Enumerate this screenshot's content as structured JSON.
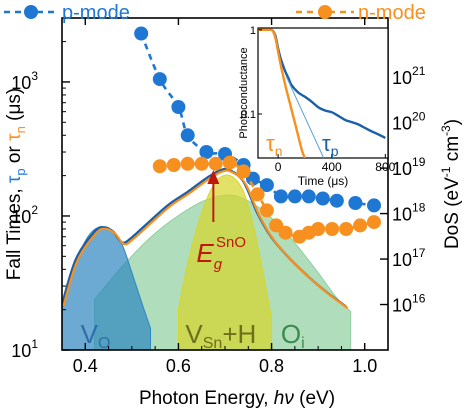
{
  "chart_data": [
    {
      "type": "scatter",
      "xlabel": "Photon Energy, hν (eV)",
      "xlabel_main": "Photon Energy,",
      "xlabel_var": "hν",
      "xlabel_unit": "(eV)",
      "ylabel_left": "Fall Times, τp or τn (μs)",
      "ylabel_left_parts": [
        "Fall Times, ",
        "τ",
        "p",
        " or ",
        "τ",
        "n",
        " (μs)"
      ],
      "ylabel_right": "DoS (eV⁻¹ cm⁻³)",
      "ylabel_right_parts": [
        "DoS (eV",
        "-1",
        " cm",
        "-3",
        ")"
      ],
      "xlim": [
        0.35,
        1.05
      ],
      "ylim_left": [
        10,
        3000
      ],
      "yscale_left": "log",
      "ylim_right": [
        1000000000000000.0,
        2e+22
      ],
      "yscale_right": "log",
      "x_ticks": [
        {
          "value": 0.4,
          "label": "0.4"
        },
        {
          "value": 0.6,
          "label": "0.6"
        },
        {
          "value": 0.8,
          "label": "0.8"
        },
        {
          "value": 1.0,
          "label": "1.0"
        }
      ],
      "left_ticks": [
        {
          "value": 10,
          "base": "10",
          "exp": "1"
        },
        {
          "value": 100,
          "base": "10",
          "exp": "2"
        },
        {
          "value": 1000,
          "base": "10",
          "exp": "3"
        }
      ],
      "right_ticks": [
        {
          "value": 1e+16,
          "base": "10",
          "exp": "16"
        },
        {
          "value": 1e+17,
          "base": "10",
          "exp": "17"
        },
        {
          "value": 1e+18,
          "base": "10",
          "exp": "18"
        },
        {
          "value": 1e+19,
          "base": "10",
          "exp": "19"
        },
        {
          "value": 1e+20,
          "base": "10",
          "exp": "20"
        },
        {
          "value": 1e+21,
          "base": "10",
          "exp": "21"
        }
      ],
      "legend_position": "top",
      "series": [
        {
          "name": "p-mode",
          "color": "#1f77d4",
          "axis": "left",
          "x": [
            0.52,
            0.56,
            0.6,
            0.62,
            0.66,
            0.7,
            0.74,
            0.76,
            0.79,
            0.82,
            0.85,
            0.88,
            0.91,
            0.94,
            0.98,
            1.02
          ],
          "y": [
            2300,
            1050,
            650,
            400,
            300,
            290,
            240,
            190,
            170,
            140,
            140,
            140,
            135,
            130,
            125,
            120
          ]
        },
        {
          "name": "n-mode",
          "color": "#f7901e",
          "axis": "left",
          "x": [
            0.56,
            0.59,
            0.62,
            0.65,
            0.68,
            0.71,
            0.74,
            0.77,
            0.79,
            0.81,
            0.83,
            0.86,
            0.88,
            0.9,
            0.93,
            0.96,
            0.99,
            1.02
          ],
          "y": [
            235,
            240,
            245,
            245,
            245,
            250,
            215,
            145,
            110,
            85,
            75,
            70,
            75,
            80,
            80,
            80,
            85,
            90
          ]
        }
      ],
      "dos": {
        "axis": "right",
        "total": {
          "color": "#f7901e",
          "x": [
            0.35,
            0.38,
            0.42,
            0.44,
            0.46,
            0.48,
            0.5,
            0.54,
            0.58,
            0.62,
            0.66,
            0.69,
            0.71,
            0.74,
            0.77,
            0.8,
            0.84,
            0.88,
            0.92,
            0.96
          ],
          "y": [
            1e+16,
            1e+17,
            4e+17,
            5e+17,
            4e+17,
            2.3e+17,
            3e+17,
            7e+17,
            1.6e+18,
            3e+18,
            6e+18,
            9e+18,
            9e+18,
            5e+18,
            1e+18,
            3e+17,
            1e+17,
            4e+16,
            1.8e+16,
            9000000000000000.0
          ]
        },
        "components": [
          {
            "name": "V_O",
            "color": "#2e86c1",
            "x": [
              0.35,
              0.38,
              0.4,
              0.42,
              0.44,
              0.46,
              0.48,
              0.5,
              0.52,
              0.54
            ],
            "y": [
              8000000000000000.0,
              8e+16,
              2.5e+17,
              4.5e+17,
              5e+17,
              4e+17,
              2e+17,
              5e+16,
              1.2e+16,
              3000000000000000.0
            ]
          },
          {
            "name": "V_Sn+H",
            "color": "#d6d62a",
            "x": [
              0.6,
              0.62,
              0.64,
              0.66,
              0.68,
              0.7,
              0.72,
              0.74,
              0.76,
              0.78,
              0.8
            ],
            "y": [
              8000000000000000.0,
              8e+16,
              5e+17,
              2e+18,
              5e+18,
              7e+18,
              6e+18,
              3e+18,
              6e+17,
              6e+16,
              5000000000000000.0
            ]
          },
          {
            "name": "O_i",
            "color": "#8fcf9e",
            "x": [
              0.42,
              0.48,
              0.54,
              0.6,
              0.66,
              0.72,
              0.78,
              0.84,
              0.9,
              0.94,
              0.97
            ],
            "y": [
              1.3e+16,
              7e+16,
              3e+17,
              9e+17,
              2e+18,
              2.5e+18,
              1.2e+18,
              3e+17,
              5e+16,
              1.4e+16,
              7000000000000000.0
            ]
          }
        ],
        "labels": [
          {
            "text": "V",
            "sub": "O",
            "color": "#2e6fa8"
          },
          {
            "text": "V",
            "sub": "Sn",
            "suffix": "+H",
            "color": "#6f6f1a"
          },
          {
            "text": "O",
            "sub": "i",
            "color": "#3d8a4e"
          }
        ]
      },
      "annotation": {
        "base": "E",
        "sub": "g",
        "sup": "SnO",
        "x": 0.675,
        "color": "#c0180c"
      },
      "inset": {
        "type": "line",
        "xlabel": "Time (μs)",
        "ylabel": "Photoconductance",
        "xlim": [
          -150,
          820
        ],
        "ylim": [
          0.03,
          1.05
        ],
        "yscale": "log",
        "x_ticks": [
          {
            "value": 0,
            "label": "0"
          },
          {
            "value": 400,
            "label": "400"
          },
          {
            "value": 800,
            "label": "800"
          }
        ],
        "y_ticks": [
          {
            "value": 1,
            "label": "1"
          },
          {
            "value": 0.1,
            "label": "0.1"
          }
        ],
        "series": [
          {
            "name": "τp",
            "color": "#1a5fa8",
            "x": [
              -150,
              -100,
              -60,
              -40,
              -20,
              0,
              20,
              50,
              80,
              100,
              150,
              200,
              250,
              300,
              350,
              400,
              450,
              500,
              550,
              600,
              650,
              700,
              750,
              800
            ],
            "y": [
              1,
              1,
              1,
              0.98,
              0.85,
              0.6,
              0.45,
              0.33,
              0.26,
              0.22,
              0.18,
              0.16,
              0.14,
              0.12,
              0.11,
              0.105,
              0.095,
              0.085,
              0.08,
              0.075,
              0.068,
              0.062,
              0.057,
              0.052
            ]
          },
          {
            "name": "τn",
            "color": "#f7901e",
            "x": [
              -150,
              -100,
              -60,
              -40,
              -20,
              0,
              30,
              60,
              90,
              120,
              150,
              180,
              200
            ],
            "y": [
              1,
              1,
              1,
              0.97,
              0.8,
              0.55,
              0.32,
              0.2,
              0.13,
              0.085,
              0.055,
              0.036,
              0.03
            ]
          }
        ],
        "fit_p": {
          "color": "#5aa0d6",
          "x": [
            60,
            340
          ],
          "y": [
            0.28,
            0.03
          ]
        },
        "labels": [
          {
            "text": "τ",
            "sub": "n",
            "color": "#f7901e"
          },
          {
            "text": "τ",
            "sub": "p",
            "color": "#1a5fa8"
          }
        ]
      }
    }
  ]
}
